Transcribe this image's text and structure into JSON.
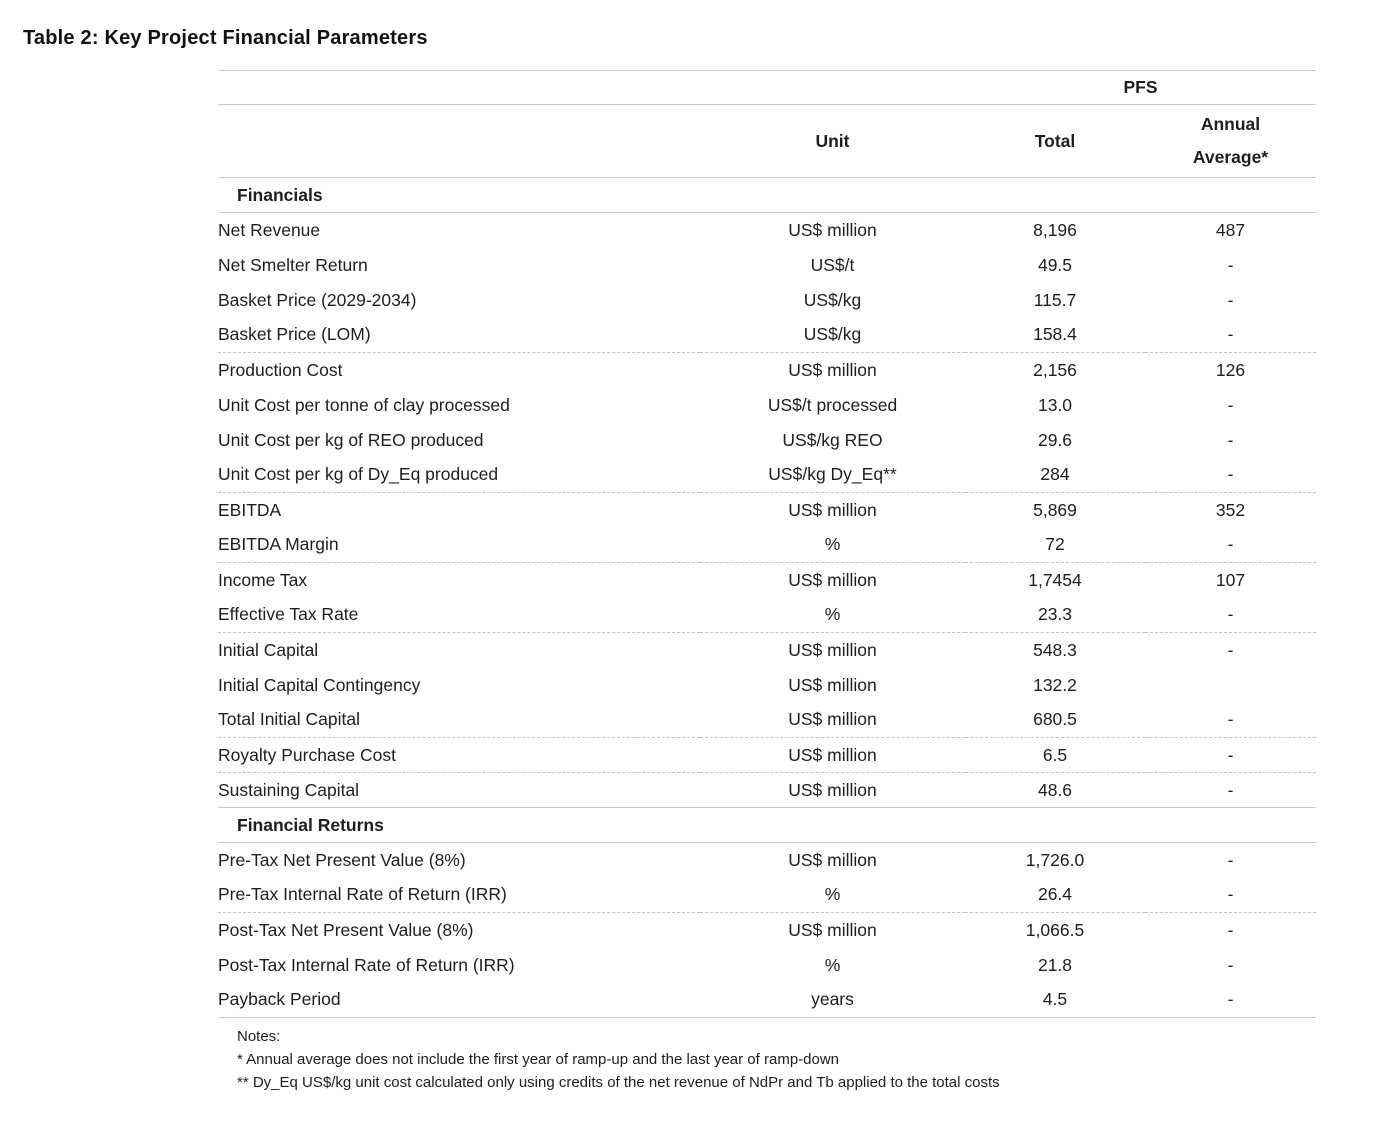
{
  "title": "Table 2: Key Project Financial Parameters",
  "colors": {
    "text": "#1e1e1e",
    "rule_solid": "#c9c9c9",
    "rule_dashed": "#c2c2c2",
    "background": "#ffffff"
  },
  "table": {
    "group_header": "PFS",
    "headers": {
      "unit": "Unit",
      "total": "Total",
      "annual_line1": "Annual",
      "annual_line2": "Average*"
    },
    "sections": [
      {
        "label": "Financials",
        "groups": [
          {
            "rows": [
              {
                "param": "Net Revenue",
                "unit": "US$ million",
                "total": "8,196",
                "annual": "487"
              },
              {
                "param": "Net Smelter Return",
                "unit": "US$/t",
                "total": "49.5",
                "annual": "-"
              },
              {
                "param": "Basket Price (2029-2034)",
                "unit": "US$/kg",
                "total": "115.7",
                "annual": "-"
              },
              {
                "param": "Basket Price (LOM)",
                "unit": "US$/kg",
                "total": "158.4",
                "annual": "-"
              }
            ]
          },
          {
            "rows": [
              {
                "param": "Production Cost",
                "unit": "US$ million",
                "total": "2,156",
                "annual": "126"
              },
              {
                "param": "Unit Cost per tonne of clay processed",
                "unit": "US$/t processed",
                "total": "13.0",
                "annual": "-"
              },
              {
                "param": "Unit Cost per kg of REO produced",
                "unit": "US$/kg REO",
                "total": "29.6",
                "annual": "-"
              },
              {
                "param": "Unit Cost per kg of Dy_Eq produced",
                "unit": "US$/kg Dy_Eq**",
                "total": "284",
                "annual": "-"
              }
            ]
          },
          {
            "rows": [
              {
                "param": "EBITDA",
                "unit": "US$ million",
                "total": "5,869",
                "annual": "352"
              },
              {
                "param": "EBITDA Margin",
                "unit": "%",
                "total": "72",
                "annual": "-"
              }
            ]
          },
          {
            "rows": [
              {
                "param": "Income Tax",
                "unit": "US$ million",
                "total": "1,7454",
                "annual": "107"
              },
              {
                "param": "Effective Tax Rate",
                "unit": "%",
                "total": "23.3",
                "annual": "-"
              }
            ]
          },
          {
            "rows": [
              {
                "param": "Initial Capital",
                "unit": "US$ million",
                "total": "548.3",
                "annual": "-"
              },
              {
                "param": "Initial Capital Contingency",
                "unit": "US$ million",
                "total": "132.2",
                "annual": ""
              },
              {
                "param": "Total Initial Capital",
                "unit": "US$ million",
                "total": "680.5",
                "annual": "-"
              }
            ]
          },
          {
            "rows": [
              {
                "param": "Royalty Purchase Cost",
                "unit": "US$ million",
                "total": "6.5",
                "annual": "-"
              }
            ]
          },
          {
            "rows": [
              {
                "param": "Sustaining Capital",
                "unit": "US$ million",
                "total": "48.6",
                "annual": "-"
              }
            ]
          }
        ]
      },
      {
        "label": "Financial Returns",
        "groups": [
          {
            "rows": [
              {
                "param": "Pre-Tax Net Present Value (8%)",
                "unit": "US$ million",
                "total": "1,726.0",
                "annual": "-"
              },
              {
                "param": "Pre-Tax Internal Rate of Return (IRR)",
                "unit": "%",
                "total": "26.4",
                "annual": "-"
              }
            ]
          },
          {
            "rows": [
              {
                "param": "Post-Tax Net Present Value (8%)",
                "unit": "US$ million",
                "total": "1,066.5",
                "annual": "-"
              },
              {
                "param": "Post-Tax Internal Rate of Return (IRR)",
                "unit": "%",
                "total": "21.8",
                "annual": "-"
              },
              {
                "param": "Payback Period",
                "unit": "years",
                "total": "4.5",
                "annual": "-"
              }
            ]
          }
        ]
      }
    ]
  },
  "notes": {
    "heading": "Notes:",
    "lines": [
      "* Annual average does not include the first year of ramp-up and the last year of ramp-down",
      "** Dy_Eq US$/kg unit cost calculated only using credits of the net revenue of NdPr and Tb applied to the total costs"
    ]
  }
}
